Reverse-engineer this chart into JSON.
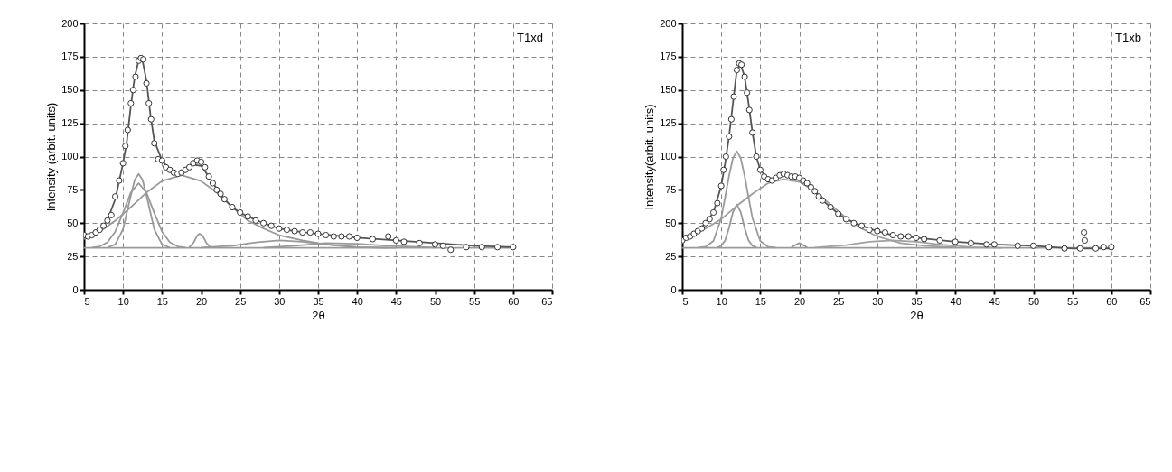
{
  "chart_data": [
    {
      "type": "line",
      "title": "T1xd",
      "xlabel": "2θ",
      "ylabel": "Intensity (arbit. units)",
      "xlim": [
        5,
        65
      ],
      "ylim": [
        0,
        200
      ],
      "xticks": [
        5,
        10,
        15,
        20,
        25,
        30,
        35,
        40,
        45,
        50,
        55,
        60,
        65
      ],
      "yticks": [
        0,
        25,
        50,
        75,
        100,
        125,
        150,
        175,
        200
      ],
      "grid": true,
      "line_style": "solid",
      "series": [
        {
          "color": "#999999",
          "x": [
            5,
            60
          ],
          "values": [
            31.5,
            31.5
          ]
        },
        {
          "color": "#999999",
          "x": [
            8,
            9,
            10,
            11,
            11.5,
            12,
            12.5,
            13,
            14,
            15,
            16
          ],
          "values": [
            31.7,
            34,
            45.4,
            70.8,
            82.5,
            87,
            82.5,
            70.8,
            45.4,
            34,
            31.7
          ]
        },
        {
          "color": "#999999",
          "x": [
            6,
            7,
            8,
            9,
            10,
            11,
            12,
            13,
            14,
            15,
            16,
            17,
            18
          ],
          "values": [
            31.6,
            32.5,
            35.6,
            43.6,
            57.7,
            73,
            80,
            73,
            57.7,
            43.6,
            35.6,
            32.5,
            31.6
          ]
        },
        {
          "color": "#999999",
          "x": [
            5,
            7,
            9,
            11,
            13,
            15,
            17.5,
            20,
            22,
            24,
            26,
            28,
            30,
            33,
            36,
            40,
            44
          ],
          "values": [
            38,
            43.5,
            51.8,
            62,
            73,
            81.6,
            86,
            81.6,
            73,
            62,
            52,
            46,
            41,
            37,
            34,
            32,
            31.5
          ]
        },
        {
          "color": "#999999",
          "x": [
            18.5,
            19,
            19.5,
            19.8,
            20.2,
            20.7,
            21.2
          ],
          "values": [
            31.8,
            35,
            40.5,
            42,
            40.5,
            35,
            31.8
          ]
        },
        {
          "color": "#999999",
          "x": [
            20,
            24,
            27,
            30,
            33,
            36,
            40,
            45
          ],
          "values": [
            31.6,
            33,
            35.5,
            37,
            36,
            34,
            32,
            31.5
          ]
        },
        {
          "color": "#999999",
          "x": [
            28,
            32,
            36,
            40,
            44,
            50
          ],
          "values": [
            31.6,
            33,
            35,
            34.5,
            33,
            31.6
          ]
        },
        {
          "color": "#555555",
          "x": [
            5,
            6,
            7,
            8,
            9,
            10,
            10.5,
            11,
            11.5,
            12,
            12.5,
            13,
            13.5,
            14,
            15,
            16,
            17,
            18,
            19,
            20,
            21,
            22,
            23,
            24,
            25,
            26,
            28,
            30,
            32,
            35,
            40,
            45,
            50,
            55,
            60
          ],
          "values": [
            40,
            41,
            45,
            52,
            68,
            95,
            112,
            138,
            160,
            172,
            172,
            157,
            132,
            112,
            97,
            90,
            88,
            90,
            94,
            93,
            85,
            76,
            68,
            62,
            58,
            55,
            50,
            46,
            44,
            42,
            39,
            37,
            35,
            33,
            32
          ]
        },
        {
          "type": "scatter",
          "marker": "circle",
          "color": "#333333",
          "x": [
            5,
            5.5,
            6,
            6.5,
            7,
            7.5,
            8,
            8.5,
            9,
            9.5,
            10,
            10.3,
            10.6,
            11,
            11.3,
            11.6,
            12,
            12.3,
            12.6,
            13,
            13.3,
            13.6,
            14,
            14.5,
            15,
            15.5,
            16,
            16.5,
            17,
            17.5,
            18,
            18.5,
            19,
            19.5,
            20,
            20.5,
            21,
            21.5,
            22,
            22.5,
            23,
            24,
            25,
            26,
            27,
            28,
            29,
            30,
            31,
            32,
            33,
            34,
            35,
            36,
            37,
            38,
            39,
            40,
            42,
            44,
            45,
            46,
            48,
            50,
            51,
            52,
            54,
            56,
            58,
            60
          ],
          "values": [
            41,
            40,
            41,
            43,
            45,
            48,
            52,
            56,
            70,
            82,
            95,
            108,
            120,
            140,
            150,
            160,
            172,
            174,
            173,
            155,
            140,
            128,
            110,
            98,
            97,
            92,
            90,
            88,
            87,
            88,
            90,
            92,
            95,
            97,
            96,
            92,
            85,
            80,
            75,
            72,
            68,
            62,
            58,
            55,
            52,
            50,
            48,
            46,
            45,
            44,
            43,
            43,
            42,
            41,
            40,
            40,
            40,
            39,
            38,
            40,
            37,
            36,
            35,
            34,
            33,
            30,
            32,
            32,
            32,
            32
          ]
        }
      ]
    },
    {
      "type": "line",
      "title": "T1xb",
      "xlabel": "2θ",
      "ylabel": "Intensity(arbit. units)",
      "xlim": [
        5,
        65
      ],
      "ylim": [
        0,
        200
      ],
      "xticks": [
        5,
        10,
        15,
        20,
        25,
        30,
        35,
        40,
        45,
        50,
        55,
        60,
        65
      ],
      "yticks": [
        0,
        25,
        50,
        75,
        100,
        125,
        150,
        175,
        200
      ],
      "grid": true,
      "line_style": "solid",
      "series": [
        {
          "color": "#999999",
          "x": [
            5,
            60
          ],
          "values": [
            31.5,
            31.5
          ]
        },
        {
          "color": "#9b9b9b",
          "x": [
            7,
            8,
            9,
            10,
            11,
            11.5,
            12,
            12.5,
            13,
            14,
            15,
            16,
            17
          ],
          "values": [
            31.6,
            32.2,
            36.6,
            53.7,
            85.4,
            98.8,
            104,
            98.8,
            85.4,
            53.7,
            36.6,
            32.2,
            31.6
          ]
        },
        {
          "color": "#979797",
          "x": [
            9.5,
            10,
            10.5,
            11,
            11.5,
            12,
            12.5,
            13,
            13.5,
            14,
            14.5
          ],
          "values": [
            31.7,
            33,
            37,
            46.4,
            58.2,
            64,
            58.2,
            46.4,
            37,
            33,
            31.7
          ]
        },
        {
          "color": "#9d9d9d",
          "x": [
            5,
            8,
            10,
            12,
            14,
            16,
            18,
            20,
            22,
            24,
            26,
            28,
            30,
            33,
            36,
            40
          ],
          "values": [
            38,
            46,
            53,
            63,
            72,
            80,
            83,
            81,
            74,
            64,
            54,
            46,
            40,
            35,
            33,
            31.8
          ]
        },
        {
          "color": "#959595",
          "x": [
            19,
            19.5,
            20,
            20.5,
            21
          ],
          "values": [
            31.8,
            33.5,
            35,
            33.5,
            31.8
          ]
        },
        {
          "color": "#a0a0a0",
          "x": [
            22,
            26,
            29,
            32,
            35,
            38,
            42,
            46
          ],
          "values": [
            31.6,
            33.5,
            36,
            37,
            36,
            34,
            32,
            31.5
          ]
        },
        {
          "color": "#555555",
          "x": [
            5,
            6,
            7,
            8,
            9,
            10,
            10.5,
            11,
            11.5,
            12,
            12.5,
            13,
            13.5,
            14,
            14.5,
            15,
            16,
            17,
            18,
            19,
            20,
            21,
            22,
            23,
            24,
            25,
            26,
            28,
            30,
            32,
            35,
            40,
            45,
            50,
            55,
            60
          ],
          "values": [
            37,
            40,
            44,
            50,
            58,
            78,
            95,
            115,
            140,
            165,
            169,
            160,
            140,
            118,
            100,
            90,
            83,
            84,
            86,
            85,
            84,
            80,
            74,
            67,
            62,
            57,
            53,
            48,
            44,
            41,
            39,
            36,
            34,
            33,
            31,
            31
          ]
        },
        {
          "type": "scatter",
          "marker": "circle",
          "color": "#333333",
          "x": [
            5,
            5.5,
            6,
            6.5,
            7,
            7.5,
            8,
            8.5,
            9,
            9.5,
            10,
            10.3,
            10.6,
            11,
            11.3,
            11.6,
            12,
            12.3,
            12.6,
            13,
            13.3,
            13.6,
            14,
            14.5,
            15,
            15.5,
            16,
            16.5,
            17,
            17.5,
            18,
            18.5,
            19,
            19.5,
            20,
            20.5,
            21,
            21.5,
            22,
            22.5,
            23,
            24,
            25,
            26,
            27,
            28,
            29,
            30,
            31,
            32,
            33,
            34,
            35,
            36,
            38,
            40,
            42,
            44,
            45,
            48,
            50,
            52,
            54,
            56,
            56.5,
            56.6,
            58,
            59,
            60
          ],
          "values": [
            37,
            39,
            40,
            42,
            44,
            46,
            50,
            53,
            58,
            65,
            78,
            90,
            100,
            115,
            128,
            145,
            165,
            170,
            169,
            160,
            148,
            135,
            118,
            100,
            90,
            85,
            83,
            82,
            84,
            86,
            87,
            86,
            85,
            85,
            84,
            82,
            80,
            77,
            74,
            70,
            67,
            62,
            57,
            53,
            50,
            48,
            45,
            44,
            43,
            41,
            40,
            40,
            39,
            38,
            37,
            36,
            35,
            34,
            34,
            33,
            33,
            32,
            31,
            31,
            43,
            37,
            31,
            32,
            32
          ]
        }
      ]
    }
  ]
}
